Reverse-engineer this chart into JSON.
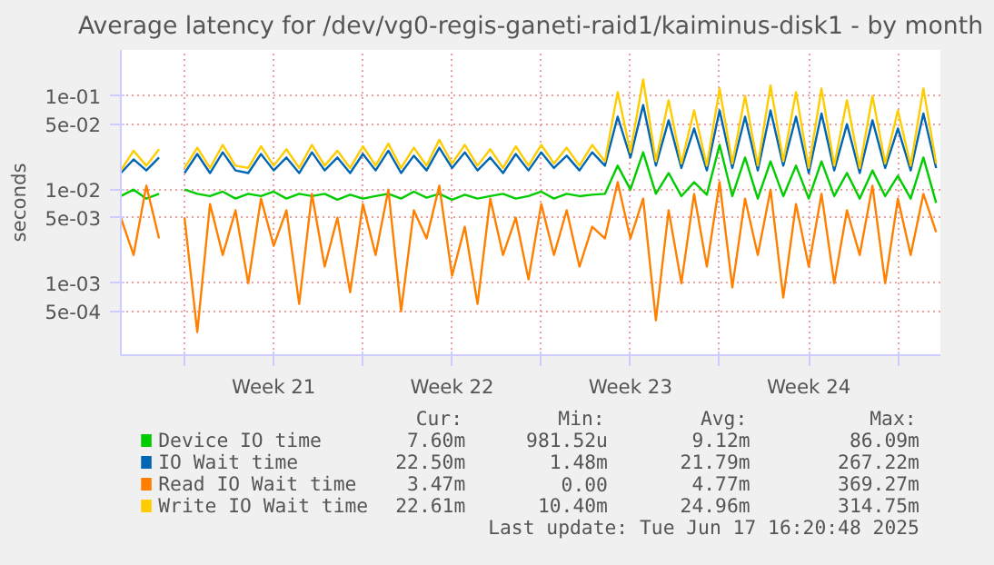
{
  "chart_data": {
    "type": "line",
    "title": "Average latency for /dev/vg0-regis-ganeti-raid1/kaiminus-disk1 - by month",
    "ylabel": "seconds",
    "log": true,
    "grid": true,
    "legend": "bottom",
    "x": [
      "2025-05-16T12:00",
      "2025-05-17T00:00",
      "2025-05-17T12:00",
      "2025-05-18T00:00",
      "2025-05-18T12:00",
      "2025-05-19T00:00",
      "2025-05-19T12:00",
      "2025-05-20T00:00",
      "2025-05-20T12:00",
      "2025-05-21T00:00",
      "2025-05-21T12:00",
      "2025-05-22T00:00",
      "2025-05-22T12:00",
      "2025-05-23T00:00",
      "2025-05-23T12:00",
      "2025-05-24T00:00",
      "2025-05-24T12:00",
      "2025-05-25T00:00",
      "2025-05-25T12:00",
      "2025-05-26T00:00",
      "2025-05-26T12:00",
      "2025-05-27T00:00",
      "2025-05-27T12:00",
      "2025-05-28T00:00",
      "2025-05-28T12:00",
      "2025-05-29T00:00",
      "2025-05-29T12:00",
      "2025-05-30T00:00",
      "2025-05-30T12:00",
      "2025-05-31T00:00",
      "2025-05-31T12:00",
      "2025-06-01T00:00",
      "2025-06-01T12:00",
      "2025-06-02T00:00",
      "2025-06-02T12:00",
      "2025-06-03T00:00",
      "2025-06-03T12:00",
      "2025-06-04T00:00",
      "2025-06-04T12:00",
      "2025-06-05T00:00",
      "2025-06-05T12:00",
      "2025-06-06T00:00",
      "2025-06-06T12:00",
      "2025-06-07T00:00",
      "2025-06-07T12:00",
      "2025-06-08T00:00",
      "2025-06-08T12:00",
      "2025-06-09T00:00",
      "2025-06-09T12:00",
      "2025-06-10T00:00",
      "2025-06-10T12:00",
      "2025-06-11T00:00",
      "2025-06-11T12:00",
      "2025-06-12T00:00",
      "2025-06-12T12:00",
      "2025-06-13T00:00",
      "2025-06-13T12:00",
      "2025-06-14T00:00",
      "2025-06-14T12:00",
      "2025-06-15T00:00",
      "2025-06-15T12:00",
      "2025-06-16T00:00",
      "2025-06-16T12:00",
      "2025-06-17T00:00",
      "2025-06-17T12:00"
    ],
    "series": [
      {
        "name": "Device IO time",
        "color": "#00cc00",
        "values": [
          0.0085,
          0.01,
          0.008,
          0.009,
          null,
          0.01,
          0.009,
          0.0085,
          0.0095,
          0.008,
          0.009,
          0.0085,
          0.0095,
          0.008,
          0.009,
          0.0085,
          0.009,
          0.0078,
          0.0088,
          0.008,
          0.0085,
          0.009,
          0.008,
          0.0095,
          0.0082,
          0.009,
          0.0078,
          0.0088,
          0.008,
          0.0085,
          0.009,
          0.008,
          0.0085,
          0.0095,
          0.008,
          0.009,
          0.0085,
          0.0088,
          0.009,
          0.018,
          0.01,
          0.025,
          0.009,
          0.015,
          0.0085,
          0.012,
          0.0088,
          0.03,
          0.0085,
          0.022,
          0.008,
          0.02,
          0.0085,
          0.018,
          0.008,
          0.02,
          0.0085,
          0.015,
          0.008,
          0.016,
          0.0085,
          0.014,
          0.008,
          0.022,
          0.0072
        ]
      },
      {
        "name": "IO Wait time",
        "color": "#0066b3",
        "values": [
          0.015,
          0.021,
          0.016,
          0.022,
          null,
          0.015,
          0.024,
          0.015,
          0.025,
          0.016,
          0.015,
          0.024,
          0.016,
          0.022,
          0.015,
          0.025,
          0.016,
          0.022,
          0.015,
          0.024,
          0.016,
          0.026,
          0.015,
          0.023,
          0.016,
          0.028,
          0.017,
          0.025,
          0.016,
          0.022,
          0.015,
          0.024,
          0.016,
          0.025,
          0.017,
          0.023,
          0.016,
          0.025,
          0.018,
          0.06,
          0.022,
          0.08,
          0.018,
          0.055,
          0.017,
          0.045,
          0.016,
          0.07,
          0.017,
          0.06,
          0.016,
          0.07,
          0.018,
          0.06,
          0.015,
          0.065,
          0.016,
          0.05,
          0.015,
          0.055,
          0.017,
          0.045,
          0.016,
          0.065,
          0.017
        ]
      },
      {
        "name": "Read IO Wait time",
        "color": "#ff8000",
        "values": [
          0.005,
          0.002,
          0.011,
          0.003,
          null,
          0.005,
          0.0003,
          0.007,
          0.002,
          0.006,
          0.001,
          0.008,
          0.0025,
          0.006,
          0.0006,
          0.009,
          0.0015,
          0.005,
          0.0008,
          0.007,
          0.002,
          0.01,
          0.0005,
          0.006,
          0.003,
          0.011,
          0.0012,
          0.004,
          0.0006,
          0.008,
          0.002,
          0.005,
          0.0011,
          0.007,
          0.002,
          0.006,
          0.0015,
          0.004,
          0.003,
          0.012,
          0.003,
          0.008,
          0.0004,
          0.006,
          0.001,
          0.009,
          0.0015,
          0.012,
          0.0009,
          0.008,
          0.002,
          0.01,
          0.0007,
          0.007,
          0.0015,
          0.009,
          0.001,
          0.006,
          0.002,
          0.011,
          0.001,
          0.008,
          0.002,
          0.009,
          0.0035
        ]
      },
      {
        "name": "Write IO Wait time",
        "color": "#ffcc00",
        "values": [
          0.016,
          0.026,
          0.018,
          0.027,
          null,
          0.017,
          0.028,
          0.017,
          0.03,
          0.018,
          0.017,
          0.029,
          0.018,
          0.027,
          0.017,
          0.03,
          0.018,
          0.026,
          0.017,
          0.029,
          0.018,
          0.031,
          0.017,
          0.028,
          0.018,
          0.034,
          0.019,
          0.03,
          0.018,
          0.027,
          0.017,
          0.029,
          0.018,
          0.03,
          0.019,
          0.028,
          0.018,
          0.03,
          0.02,
          0.11,
          0.025,
          0.15,
          0.02,
          0.09,
          0.019,
          0.07,
          0.018,
          0.12,
          0.019,
          0.1,
          0.018,
          0.13,
          0.02,
          0.11,
          0.017,
          0.12,
          0.018,
          0.09,
          0.017,
          0.1,
          0.019,
          0.07,
          0.018,
          0.12,
          0.019
        ]
      }
    ],
    "xlim": [
      "2025-05-16T12:00",
      "2025-06-17T16:00"
    ],
    "xticks": [
      {
        "value": "2025-05-19T00:00",
        "label": null
      },
      {
        "value": "2025-05-22T12:00",
        "label": "Week 21"
      },
      {
        "value": "2025-05-26T00:00",
        "label": null
      },
      {
        "value": "2025-05-29T12:00",
        "label": "Week 22"
      },
      {
        "value": "2025-06-02T00:00",
        "label": null
      },
      {
        "value": "2025-06-05T12:00",
        "label": "Week 23"
      },
      {
        "value": "2025-06-09T00:00",
        "label": null
      },
      {
        "value": "2025-06-12T12:00",
        "label": "Week 24"
      },
      {
        "value": "2025-06-16T00:00",
        "label": null
      }
    ],
    "ylim": [
      0.00017,
      0.31
    ],
    "yticks": [
      {
        "value": 0.0005,
        "label": "5e-04"
      },
      {
        "value": 0.001,
        "label": "1e-03"
      },
      {
        "value": 0.005,
        "label": "5e-03"
      },
      {
        "value": 0.01,
        "label": "1e-02"
      },
      {
        "value": 0.05,
        "label": "5e-02"
      },
      {
        "value": 0.1,
        "label": "1e-01"
      }
    ],
    "annotations": [
      "Cur:",
      "Min:",
      "Avg:",
      "Max:",
      "7.60m",
      "981.52u",
      "9.12m",
      "86.09m",
      "22.50m",
      "1.48m",
      "21.79m",
      "267.22m",
      "3.47m",
      "0.00",
      "4.77m",
      "369.27m",
      "22.61m",
      "10.40m",
      "24.96m",
      "314.75m",
      "Last update: Tue Jun 17 16:20:48 2025"
    ]
  }
}
